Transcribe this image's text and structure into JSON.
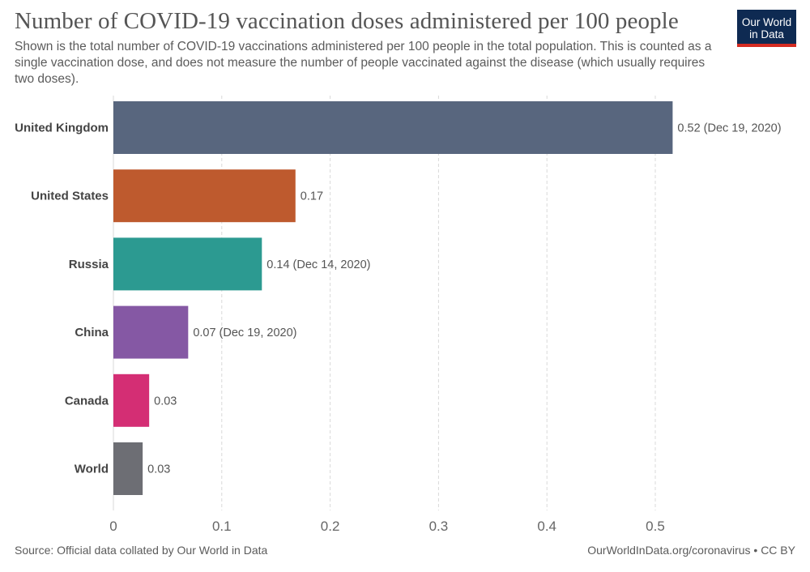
{
  "header": {
    "title": "Number of COVID-19 vaccination doses administered per 100 people",
    "subtitle": "Shown is the total number of COVID-19 vaccinations administered per 100 people in the total population. This is counted as a single vaccination dose, and does not measure the number of people vaccinated against the disease (which usually requires two doses).",
    "logo_line1": "Our World",
    "logo_line2": "in Data"
  },
  "footer": {
    "source": "Source: Official data collated by Our World in Data",
    "license": "OurWorldInData.org/coronavirus • CC BY"
  },
  "chart_data": {
    "type": "bar",
    "orientation": "horizontal",
    "title": "Number of COVID-19 vaccination doses administered per 100 people",
    "xlabel": "",
    "ylabel": "",
    "xlim": [
      0,
      0.55
    ],
    "xticks": [
      0,
      0.1,
      0.2,
      0.3,
      0.4,
      0.5
    ],
    "xtick_labels": [
      "0",
      "0.1",
      "0.2",
      "0.3",
      "0.4",
      "0.5"
    ],
    "grid": "vertical dashed",
    "categories": [
      "United Kingdom",
      "United States",
      "Russia",
      "China",
      "Canada",
      "World"
    ],
    "values": [
      0.516,
      0.168,
      0.137,
      0.069,
      0.033,
      0.027
    ],
    "value_labels": [
      "0.52 (Dec 19, 2020)",
      "0.17",
      "0.14 (Dec 14, 2020)",
      "0.07 (Dec 19, 2020)",
      "0.03",
      "0.03"
    ],
    "colors": [
      "#58667e",
      "#be5a2e",
      "#2c9a91",
      "#8558a4",
      "#d42e74",
      "#6d6e74"
    ]
  }
}
